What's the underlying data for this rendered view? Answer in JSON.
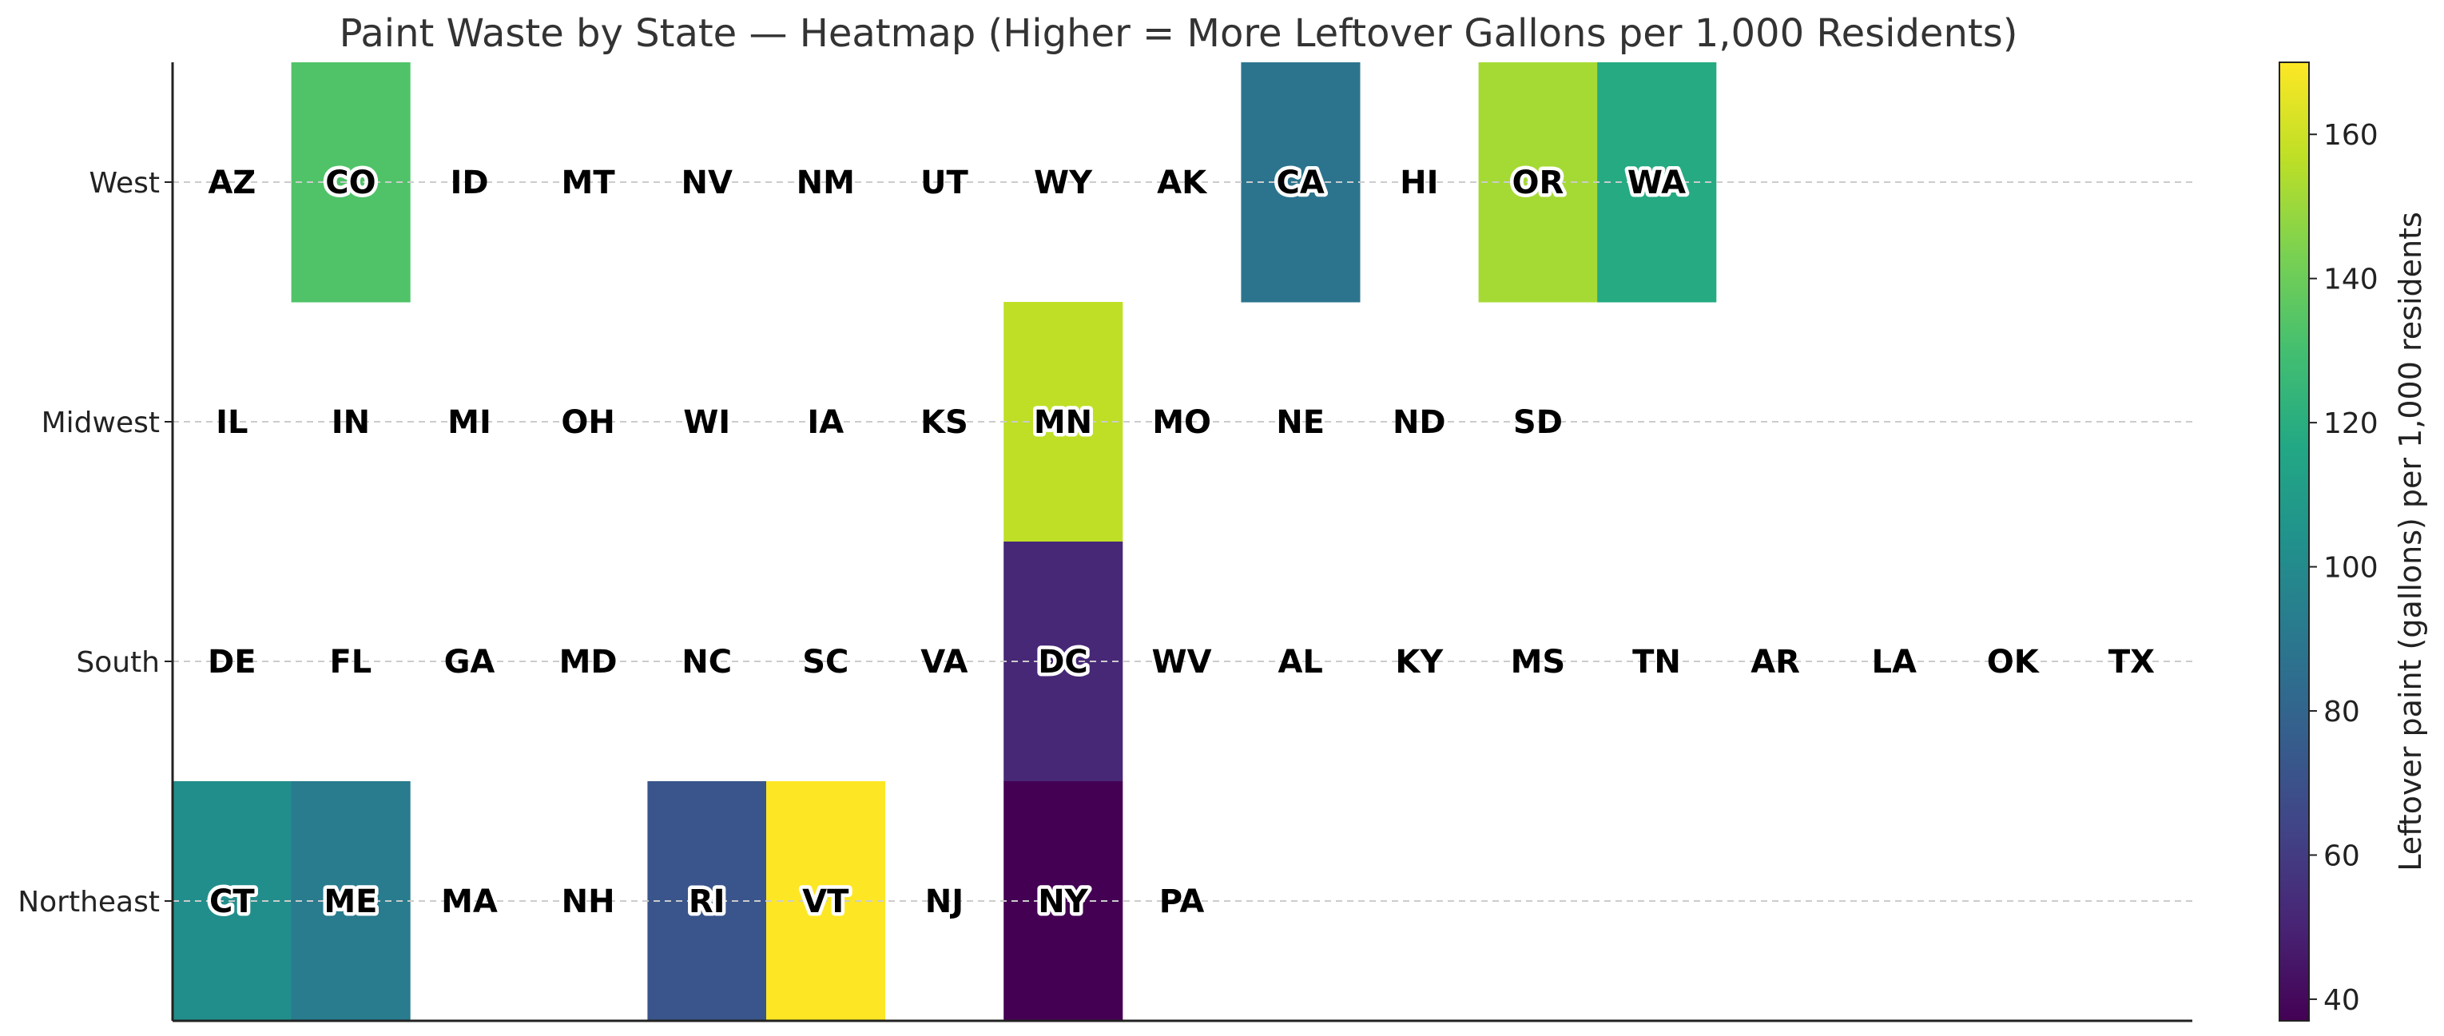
{
  "chart_data": {
    "type": "heatmap",
    "title": "Paint Waste by State — Heatmap (Higher = More Leftover Gallons per 1,000 Residents)",
    "rows": [
      "West",
      "Midwest",
      "South",
      "Northeast"
    ],
    "grid": [
      [
        {
          "state": "AZ"
        },
        {
          "state": "CO",
          "value": 133
        },
        {
          "state": "ID"
        },
        {
          "state": "MT"
        },
        {
          "state": "NV"
        },
        {
          "state": "NM"
        },
        {
          "state": "UT"
        },
        {
          "state": "WY"
        },
        {
          "state": "AK"
        },
        {
          "state": "CA",
          "value": 88
        },
        {
          "state": "HI"
        },
        {
          "state": "OR",
          "value": 152
        },
        {
          "state": "WA",
          "value": 118
        }
      ],
      [
        {
          "state": "IL"
        },
        {
          "state": "IN"
        },
        {
          "state": "MI"
        },
        {
          "state": "OH"
        },
        {
          "state": "WI"
        },
        {
          "state": "IA"
        },
        {
          "state": "KS"
        },
        {
          "state": "MN",
          "value": 157
        },
        {
          "state": "MO"
        },
        {
          "state": "NE"
        },
        {
          "state": "ND"
        },
        {
          "state": "SD"
        }
      ],
      [
        {
          "state": "DE"
        },
        {
          "state": "FL"
        },
        {
          "state": "GA"
        },
        {
          "state": "MD"
        },
        {
          "state": "NC"
        },
        {
          "state": "SC"
        },
        {
          "state": "VA"
        },
        {
          "state": "DC",
          "value": 52
        },
        {
          "state": "WV"
        },
        {
          "state": "AL"
        },
        {
          "state": "KY"
        },
        {
          "state": "MS"
        },
        {
          "state": "TN"
        },
        {
          "state": "AR"
        },
        {
          "state": "LA"
        },
        {
          "state": "OK"
        },
        {
          "state": "TX"
        }
      ],
      [
        {
          "state": "CT",
          "value": 102
        },
        {
          "state": "ME",
          "value": 92
        },
        {
          "state": "MA"
        },
        {
          "state": "NH"
        },
        {
          "state": "RI",
          "value": 72
        },
        {
          "state": "VT",
          "value": 170
        },
        {
          "state": "NJ"
        },
        {
          "state": "NY",
          "value": 37
        },
        {
          "state": "PA"
        }
      ]
    ],
    "colorbar": {
      "label": "Leftover paint (gallons) per 1,000 residents",
      "min": 37,
      "max": 170,
      "ticks": [
        40,
        60,
        80,
        100,
        120,
        140,
        160
      ],
      "colormap": "viridis"
    },
    "grid_lines": "horizontal-dashed",
    "gridline_color": "#cccccc"
  }
}
